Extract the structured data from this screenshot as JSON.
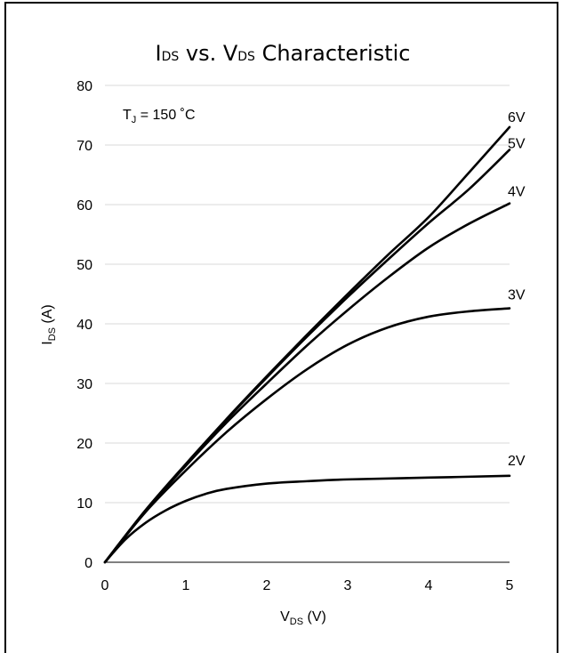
{
  "chart_data": {
    "type": "line",
    "title": {
      "main_1": "I",
      "sub_1": "DS",
      "main_2": " vs. V",
      "sub_2": "DS",
      "main_3": " Characteristic"
    },
    "annotation": {
      "main_1": "T",
      "sub_1": "J",
      "main_2": " = 150 ˚C"
    },
    "xlabel": {
      "main": "V",
      "sub": "DS",
      "rest": " (V)"
    },
    "ylabel": {
      "main": "I",
      "sub": "DS",
      "rest": " (A)"
    },
    "xlim": [
      0,
      5
    ],
    "ylim": [
      0,
      80
    ],
    "x_ticks": [
      "0",
      "1",
      "2",
      "3",
      "4",
      "5"
    ],
    "y_ticks": [
      "0",
      "10",
      "20",
      "30",
      "40",
      "50",
      "60",
      "70",
      "80"
    ],
    "grid": "horizontal",
    "series": [
      {
        "name": "6V",
        "x": [
          0,
          0.5,
          1,
          1.5,
          2,
          2.5,
          3,
          3.5,
          4,
          4.5,
          5
        ],
        "y": [
          0,
          8.7,
          16.5,
          24,
          31.2,
          38.2,
          45,
          51.6,
          57.9,
          65.4,
          73
        ]
      },
      {
        "name": "5V",
        "x": [
          0,
          0.5,
          1,
          1.5,
          2,
          2.5,
          3,
          3.5,
          4,
          4.5,
          5
        ],
        "y": [
          0,
          8.7,
          16.4,
          23.9,
          31,
          37.9,
          44.5,
          50.8,
          56.9,
          62.6,
          69.2
        ]
      },
      {
        "name": "4V",
        "x": [
          0,
          0.5,
          1,
          1.5,
          2,
          2.5,
          3,
          3.5,
          4,
          4.5,
          5
        ],
        "y": [
          0,
          8.6,
          16.2,
          23.4,
          30,
          36.4,
          42.3,
          47.8,
          52.8,
          56.8,
          60.2
        ]
      },
      {
        "name": "3V",
        "x": [
          0,
          0.5,
          1,
          1.5,
          2,
          2.5,
          3,
          3.5,
          4,
          4.5,
          5
        ],
        "y": [
          0,
          8.4,
          15.4,
          21.8,
          27.4,
          32.4,
          36.5,
          39.4,
          41.2,
          42.1,
          42.6
        ]
      },
      {
        "name": "2V",
        "x": [
          0,
          0.25,
          0.5,
          0.75,
          1,
          1.25,
          1.5,
          2,
          2.5,
          3,
          4,
          5
        ],
        "y": [
          0,
          3.8,
          6.6,
          8.7,
          10.3,
          11.5,
          12.3,
          13.2,
          13.6,
          13.9,
          14.2,
          14.5
        ]
      }
    ]
  }
}
